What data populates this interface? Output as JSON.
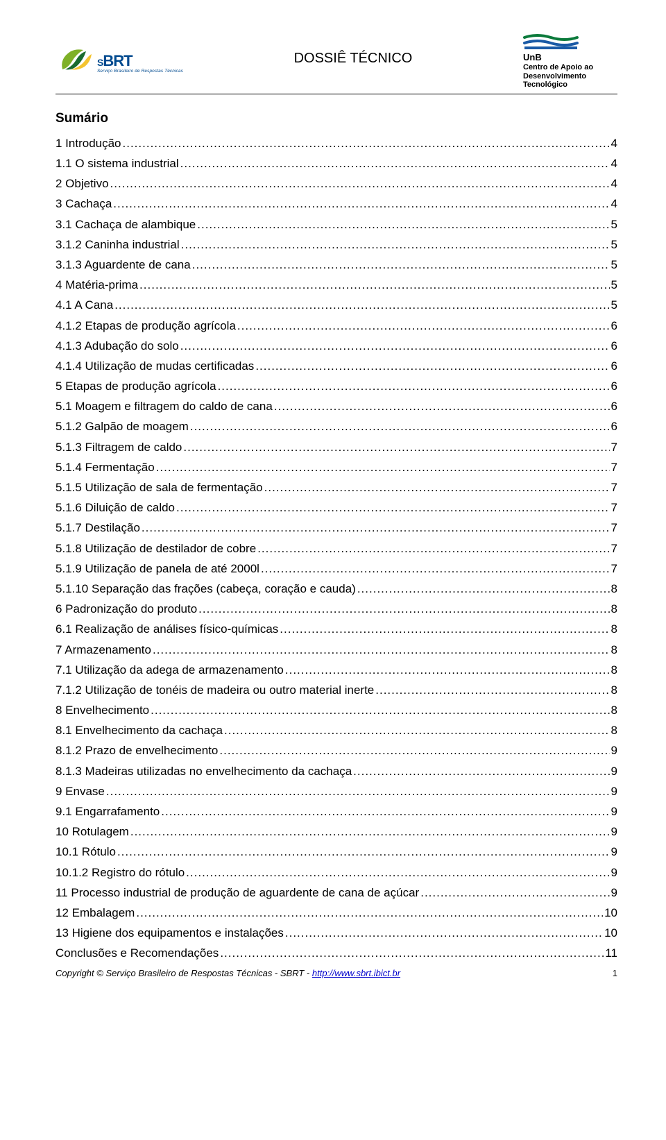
{
  "header": {
    "brt_brand_main": "BRT",
    "brt_brand_prefix": "S",
    "brt_sub": "Serviço Brasileiro de Respostas Técnicas",
    "title": "DOSSIÊ TÉCNICO",
    "unb_label": "UnB",
    "unb_line1": "Centro de Apoio ao",
    "unb_line2": "Desenvolvimento",
    "unb_line3": "Tecnológico",
    "colors": {
      "brt_blue": "#004a8f",
      "unb_green": "#0b7a3b",
      "unb_blue": "#1a5aa6",
      "leaf_green": "#7eb027",
      "leaf_dark": "#1a6b2f",
      "leaf_yellow": "#f4c430"
    }
  },
  "summary_title": "Sumário",
  "toc": [
    {
      "label": "1 Introdução",
      "page": "4"
    },
    {
      "label": "1.1 O sistema industrial",
      "page": "4"
    },
    {
      "label": "2 Objetivo",
      "page": "4"
    },
    {
      "label": "3 Cachaça",
      "page": "4"
    },
    {
      "label": "3.1 Cachaça de alambique",
      "page": "5"
    },
    {
      "label": "3.1.2 Caninha industrial",
      "page": "5"
    },
    {
      "label": "3.1.3 Aguardente de cana",
      "page": "5"
    },
    {
      "label": "4 Matéria-prima",
      "page": "5"
    },
    {
      "label": "4.1 A Cana",
      "page": "5"
    },
    {
      "label": "4.1.2 Etapas de produção agrícola",
      "page": "6"
    },
    {
      "label": "4.1.3 Adubação do solo",
      "page": "6"
    },
    {
      "label": "4.1.4 Utilização de mudas certificadas",
      "page": "6"
    },
    {
      "label": "5 Etapas de produção agrícola",
      "page": "6"
    },
    {
      "label": "5.1 Moagem e filtragem do caldo de cana",
      "page": "6"
    },
    {
      "label": "5.1.2 Galpão de moagem",
      "page": "6"
    },
    {
      "label": "5.1.3 Filtragem de caldo",
      "page": "7"
    },
    {
      "label": "5.1.4 Fermentação",
      "page": "7"
    },
    {
      "label": "5.1.5 Utilização de sala de fermentação",
      "page": "7"
    },
    {
      "label": "5.1.6 Diluição de caldo",
      "page": "7"
    },
    {
      "label": "5.1.7 Destilação",
      "page": "7"
    },
    {
      "label": "5.1.8 Utilização de destilador de cobre",
      "page": "7"
    },
    {
      "label": "5.1.9 Utilização de panela de até 2000l",
      "page": "7"
    },
    {
      "label": "5.1.10 Separação das frações (cabeça, coração e cauda)",
      "page": "8"
    },
    {
      "label": "6 Padronização do produto",
      "page": "8"
    },
    {
      "label": "6.1 Realização de análises físico-químicas",
      "page": "8"
    },
    {
      "label": "7 Armazenamento",
      "page": "8"
    },
    {
      "label": "7.1 Utilização da adega de armazenamento",
      "page": "8"
    },
    {
      "label": "7.1.2 Utilização de tonéis de madeira ou outro material inerte",
      "page": "8"
    },
    {
      "label": "8 Envelhecimento",
      "page": "8"
    },
    {
      "label": "8.1 Envelhecimento da cachaça",
      "page": "8"
    },
    {
      "label": "8.1.2 Prazo de envelhecimento",
      "page": "9"
    },
    {
      "label": "8.1.3 Madeiras utilizadas no envelhecimento da cachaça",
      "page": "9"
    },
    {
      "label": "9 Envase",
      "page": "9"
    },
    {
      "label": "9.1 Engarrafamento",
      "page": "9"
    },
    {
      "label": "10 Rotulagem",
      "page": "9"
    },
    {
      "label": "10.1 Rótulo",
      "page": "9"
    },
    {
      "label": "10.1.2 Registro do rótulo",
      "page": "9"
    },
    {
      "label": "11 Processo industrial de produção de aguardente de cana de açúcar",
      "page": "9"
    },
    {
      "label": "12 Embalagem",
      "page": "10"
    },
    {
      "label": "13 Higiene dos equipamentos e instalações",
      "page": "10"
    },
    {
      "label": "Conclusões e Recomendações",
      "page": "11"
    }
  ],
  "footer": {
    "copyright_label": "Copyright",
    "copyright_rest": " © Serviço Brasileiro de Respostas Técnicas - SBRT - ",
    "link_text": "http://www.sbrt.ibict.br",
    "page_num": "1"
  }
}
